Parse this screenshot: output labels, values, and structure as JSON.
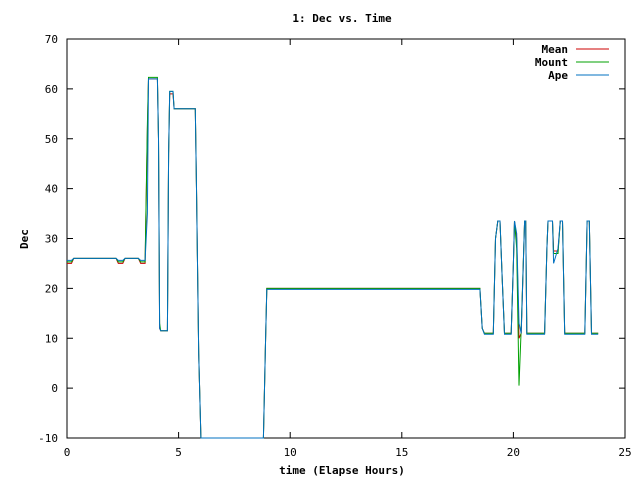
{
  "chart_data": {
    "type": "line",
    "title": "1: Dec vs. Time",
    "xlabel": "time (Elapse Hours)",
    "ylabel": "Dec",
    "xlim": [
      0,
      25
    ],
    "ylim": [
      -10,
      70
    ],
    "xticks": [
      0,
      5,
      10,
      15,
      20,
      25
    ],
    "yticks": [
      -10,
      0,
      10,
      20,
      30,
      40,
      50,
      60,
      70
    ],
    "grid": false,
    "legend_position": "top-right",
    "series": [
      {
        "name": "Mean",
        "color": "#cc0000",
        "points": [
          [
            0,
            25
          ],
          [
            0.2,
            25
          ],
          [
            0.3,
            26
          ],
          [
            2.2,
            26
          ],
          [
            2.3,
            25
          ],
          [
            2.5,
            25
          ],
          [
            2.6,
            26
          ],
          [
            3.2,
            26
          ],
          [
            3.3,
            25
          ],
          [
            3.5,
            25
          ],
          [
            3.6,
            52
          ],
          [
            3.65,
            62
          ],
          [
            4.05,
            62
          ],
          [
            4.1,
            50
          ],
          [
            4.15,
            12
          ],
          [
            4.2,
            11.5
          ],
          [
            4.5,
            11.5
          ],
          [
            4.55,
            47
          ],
          [
            4.6,
            59
          ],
          [
            4.75,
            59
          ],
          [
            4.8,
            56
          ],
          [
            5.75,
            56
          ],
          [
            5.8,
            40
          ],
          [
            5.9,
            7
          ],
          [
            6.0,
            -10
          ],
          [
            8.8,
            -10
          ],
          [
            8.9,
            10
          ],
          [
            8.95,
            20
          ],
          [
            9.2,
            20
          ],
          [
            9.25,
            20
          ],
          [
            18.5,
            20
          ],
          [
            18.6,
            12
          ],
          [
            18.7,
            11
          ],
          [
            19.1,
            11
          ],
          [
            19.2,
            30
          ],
          [
            19.3,
            33.5
          ],
          [
            19.4,
            33.5
          ],
          [
            19.5,
            22
          ],
          [
            19.6,
            11
          ],
          [
            19.9,
            11
          ],
          [
            20.0,
            25
          ],
          [
            20.05,
            33.5
          ],
          [
            20.15,
            30
          ],
          [
            20.25,
            10
          ],
          [
            20.35,
            11
          ],
          [
            20.5,
            33.5
          ],
          [
            20.55,
            33.5
          ],
          [
            20.6,
            11
          ],
          [
            21.4,
            11
          ],
          [
            21.5,
            28
          ],
          [
            21.55,
            33.5
          ],
          [
            21.75,
            33.5
          ],
          [
            21.8,
            27.5
          ],
          [
            22.0,
            27.5
          ],
          [
            22.1,
            33.5
          ],
          [
            22.2,
            33.5
          ],
          [
            22.3,
            11
          ],
          [
            23.2,
            11
          ],
          [
            23.3,
            33.5
          ],
          [
            23.4,
            33.5
          ],
          [
            23.5,
            11
          ],
          [
            23.8,
            11
          ]
        ]
      },
      {
        "name": "Mount",
        "color": "#00a000",
        "points": [
          [
            0,
            25.3
          ],
          [
            0.2,
            25.3
          ],
          [
            0.3,
            26
          ],
          [
            2.2,
            26
          ],
          [
            2.3,
            25.3
          ],
          [
            2.5,
            25.3
          ],
          [
            2.6,
            26
          ],
          [
            3.2,
            26
          ],
          [
            3.3,
            25.3
          ],
          [
            3.5,
            25.3
          ],
          [
            3.6,
            53
          ],
          [
            3.65,
            62.3
          ],
          [
            4.05,
            62.3
          ],
          [
            4.1,
            50
          ],
          [
            4.15,
            13
          ],
          [
            4.2,
            11.5
          ],
          [
            4.5,
            11.5
          ],
          [
            4.55,
            47
          ],
          [
            4.6,
            59.5
          ],
          [
            4.75,
            59.5
          ],
          [
            4.8,
            56
          ],
          [
            5.75,
            56
          ],
          [
            5.8,
            40
          ],
          [
            5.9,
            7
          ],
          [
            6.0,
            -10
          ],
          [
            8.8,
            -10
          ],
          [
            8.9,
            10
          ],
          [
            8.95,
            20
          ],
          [
            9.2,
            20
          ],
          [
            18.5,
            20
          ],
          [
            18.6,
            12
          ],
          [
            18.7,
            11
          ],
          [
            19.1,
            11
          ],
          [
            19.2,
            30
          ],
          [
            19.3,
            33.5
          ],
          [
            19.4,
            33.5
          ],
          [
            19.5,
            22
          ],
          [
            19.6,
            11
          ],
          [
            19.9,
            11
          ],
          [
            20.0,
            25
          ],
          [
            20.05,
            33.5
          ],
          [
            20.15,
            28
          ],
          [
            20.25,
            0.5
          ],
          [
            20.35,
            12
          ],
          [
            20.5,
            33.5
          ],
          [
            20.55,
            33.5
          ],
          [
            20.6,
            11
          ],
          [
            21.4,
            11
          ],
          [
            21.5,
            28
          ],
          [
            21.55,
            33.5
          ],
          [
            21.75,
            33.5
          ],
          [
            21.8,
            27
          ],
          [
            22.0,
            27
          ],
          [
            22.1,
            33.5
          ],
          [
            22.2,
            33.5
          ],
          [
            22.3,
            11
          ],
          [
            23.2,
            11
          ],
          [
            23.3,
            33.5
          ],
          [
            23.4,
            33.5
          ],
          [
            23.5,
            11
          ],
          [
            23.8,
            11
          ]
        ]
      },
      {
        "name": "Ape",
        "color": "#0070c0",
        "points": [
          [
            0,
            25.6
          ],
          [
            0.2,
            25.6
          ],
          [
            0.3,
            26
          ],
          [
            2.2,
            26
          ],
          [
            2.3,
            25.6
          ],
          [
            2.5,
            25.6
          ],
          [
            2.6,
            26
          ],
          [
            3.2,
            26
          ],
          [
            3.3,
            25.6
          ],
          [
            3.5,
            25.6
          ],
          [
            3.6,
            35
          ],
          [
            3.65,
            62
          ],
          [
            4.05,
            62
          ],
          [
            4.1,
            50
          ],
          [
            4.15,
            12
          ],
          [
            4.2,
            11.5
          ],
          [
            4.5,
            11.5
          ],
          [
            4.55,
            47
          ],
          [
            4.6,
            59.5
          ],
          [
            4.75,
            59.5
          ],
          [
            4.8,
            56
          ],
          [
            5.75,
            56
          ],
          [
            5.8,
            40
          ],
          [
            5.9,
            7
          ],
          [
            6.0,
            -10
          ],
          [
            8.8,
            -10
          ],
          [
            8.9,
            10
          ],
          [
            8.95,
            19.8
          ],
          [
            9.2,
            19.8
          ],
          [
            18.5,
            19.8
          ],
          [
            18.6,
            12
          ],
          [
            18.7,
            10.8
          ],
          [
            19.1,
            10.8
          ],
          [
            19.2,
            30
          ],
          [
            19.3,
            33.5
          ],
          [
            19.4,
            33.5
          ],
          [
            19.5,
            22
          ],
          [
            19.6,
            10.8
          ],
          [
            19.9,
            10.8
          ],
          [
            20.0,
            25
          ],
          [
            20.05,
            33.5
          ],
          [
            20.15,
            31
          ],
          [
            20.25,
            13
          ],
          [
            20.35,
            11
          ],
          [
            20.5,
            33.5
          ],
          [
            20.55,
            33.5
          ],
          [
            20.6,
            10.8
          ],
          [
            21.4,
            10.8
          ],
          [
            21.5,
            28
          ],
          [
            21.55,
            33.5
          ],
          [
            21.75,
            33.5
          ],
          [
            21.8,
            25
          ],
          [
            22.0,
            28
          ],
          [
            22.1,
            33.5
          ],
          [
            22.2,
            33.5
          ],
          [
            22.3,
            10.8
          ],
          [
            23.2,
            10.8
          ],
          [
            23.3,
            33.5
          ],
          [
            23.4,
            33.5
          ],
          [
            23.5,
            10.8
          ],
          [
            23.8,
            10.8
          ]
        ]
      }
    ]
  }
}
